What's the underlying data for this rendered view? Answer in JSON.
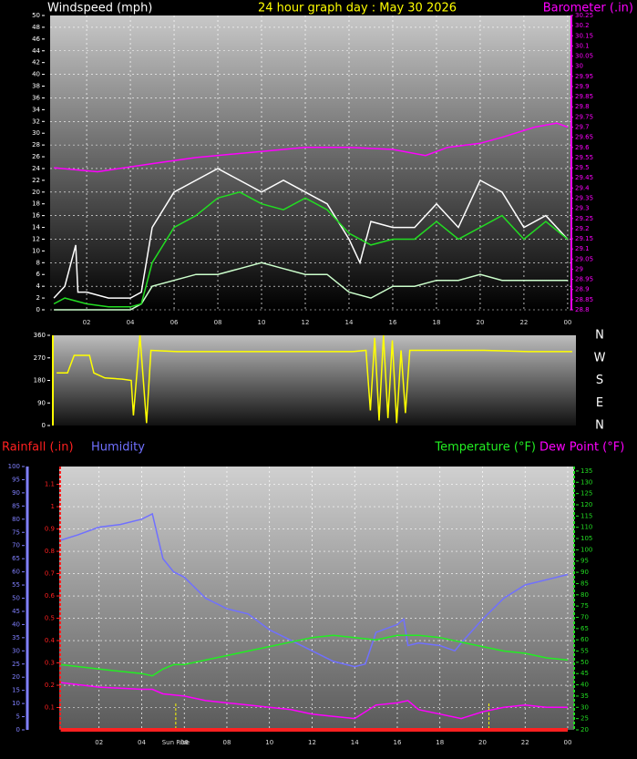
{
  "chart_data": [
    {
      "type": "line",
      "title": "24 hour graph day : May 30 2026",
      "ylabel": "Windspeed (mph)",
      "xlim": [
        0.33,
        24.17
      ],
      "xticks": [
        {
          "value": 2,
          "label": "02"
        },
        {
          "value": 4,
          "label": "04"
        },
        {
          "value": 6,
          "label": "06"
        },
        {
          "value": 8,
          "label": "08"
        },
        10,
        12,
        14,
        16,
        18,
        20,
        22,
        {
          "value": 24,
          "label": "00"
        }
      ],
      "ylim": [
        0,
        50
      ],
      "yticks": [
        0,
        2,
        4,
        6,
        8,
        10,
        12,
        14,
        16,
        18,
        20,
        22,
        24,
        26,
        28,
        30,
        32,
        34,
        36,
        38,
        40,
        42,
        44,
        46,
        48,
        50
      ],
      "y2lim": [
        28.8,
        30.25
      ],
      "y2ticks": [
        28.8,
        28.85,
        28.9,
        28.95,
        29,
        29.05,
        29.1,
        29.15,
        29.2,
        29.25,
        29.3,
        29.35,
        29.4,
        29.45,
        29.5,
        29.55,
        29.6,
        29.65,
        29.7,
        29.75,
        29.8,
        29.85,
        29.9,
        29.95,
        30,
        30.05,
        30.1,
        30.15,
        30.2,
        30.25
      ],
      "ycolor": "#ffffff",
      "y2color": "#ff00ff",
      "grid": true,
      "series": [
        {
          "color": "#ffffff",
          "x": [
            0.5,
            1,
            1.5,
            1.6,
            2,
            3,
            4,
            4.5,
            5,
            6,
            7,
            8,
            9,
            10,
            11,
            12,
            13,
            14,
            14.5,
            15,
            16,
            17,
            18,
            19,
            20,
            21,
            22,
            23,
            24
          ],
          "values": [
            2,
            4,
            11,
            3,
            3,
            2,
            2,
            3,
            14,
            20,
            22,
            24,
            22,
            20,
            22,
            20,
            18,
            12,
            8,
            15,
            14,
            14,
            18,
            14,
            22,
            20,
            14,
            16,
            12
          ]
        },
        {
          "color": "#ccffcc",
          "x": [
            0.5,
            4,
            4.5,
            5,
            6,
            7,
            8,
            9,
            10,
            11,
            12,
            13,
            14,
            15,
            16,
            17,
            18,
            19,
            20,
            21,
            22,
            23,
            24
          ],
          "values": [
            0,
            0,
            1,
            4,
            5,
            6,
            6,
            7,
            8,
            7,
            6,
            6,
            3,
            2,
            4,
            4,
            5,
            5,
            6,
            5,
            5,
            5,
            5
          ]
        },
        {
          "color": "#22dd22",
          "x": [
            0.5,
            1,
            2,
            3,
            4,
            4.5,
            5,
            6,
            7,
            8,
            9,
            10,
            11,
            12,
            13,
            14,
            15,
            16,
            17,
            18,
            19,
            20,
            21,
            22,
            23,
            24
          ],
          "values": [
            1,
            2,
            1,
            0.5,
            0.5,
            1,
            8,
            14,
            16,
            19,
            20,
            18,
            17,
            19,
            17,
            13,
            11,
            12,
            12,
            15,
            12,
            14,
            16,
            12,
            15,
            12
          ]
        },
        {
          "name": "Barometer (.in)",
          "color": "#ff00ff",
          "axis": "y2",
          "x": [
            0.5,
            2.5,
            5,
            7,
            10,
            12,
            14,
            16,
            17.5,
            18.5,
            20,
            21,
            22.5,
            23.5,
            24
          ],
          "values": [
            29.5,
            29.48,
            29.52,
            29.55,
            29.58,
            29.6,
            29.6,
            29.59,
            29.56,
            29.6,
            29.62,
            29.65,
            29.7,
            29.72,
            29.7
          ]
        }
      ]
    },
    {
      "type": "line",
      "xlim": [
        0.33,
        24.17
      ],
      "ylim": [
        0,
        360
      ],
      "yticks": [
        0,
        90,
        180,
        270,
        360
      ],
      "ycolor": "#ffffff",
      "compass": [
        "N",
        "W",
        "S",
        "E",
        "N"
      ],
      "series": [
        {
          "color": "#ffff00",
          "x": [
            0.5,
            1,
            1.3,
            2,
            2.2,
            2.7,
            3.5,
            3.9,
            4,
            4.3,
            4.6,
            4.8,
            6,
            8,
            10,
            12,
            14,
            14.6,
            14.8,
            15,
            15.2,
            15.4,
            15.6,
            15.8,
            16,
            16.2,
            16.4,
            16.6,
            18,
            20,
            22,
            24
          ],
          "values": [
            210,
            210,
            280,
            280,
            210,
            190,
            185,
            180,
            40,
            360,
            10,
            300,
            295,
            295,
            295,
            295,
            295,
            300,
            60,
            350,
            20,
            360,
            30,
            340,
            10,
            300,
            50,
            300,
            300,
            300,
            295,
            295
          ]
        }
      ]
    },
    {
      "type": "line",
      "xlim": [
        0.13,
        24.3
      ],
      "xticks": [
        {
          "value": 2,
          "label": "02"
        },
        {
          "value": 4,
          "label": "04"
        },
        {
          "value": 6,
          "label": "06"
        },
        {
          "value": 8,
          "label": "08"
        },
        10,
        12,
        14,
        16,
        18,
        20,
        22,
        {
          "value": 24,
          "label": "00"
        }
      ],
      "ylim": [
        0,
        100
      ],
      "yticks": [
        0,
        5,
        10,
        15,
        20,
        25,
        30,
        35,
        40,
        45,
        50,
        55,
        60,
        65,
        70,
        75,
        80,
        85,
        90,
        95,
        100
      ],
      "y2lim": [
        20,
        137
      ],
      "y2ticks": [
        20,
        25,
        30,
        35,
        40,
        45,
        50,
        55,
        60,
        65,
        70,
        75,
        80,
        85,
        90,
        95,
        100,
        105,
        110,
        115,
        120,
        125,
        130,
        135
      ],
      "y3lim": [
        0,
        1.18
      ],
      "y3ticks": [
        0.1,
        0.2,
        0.3,
        0.4,
        0.5,
        0.6,
        0.7,
        0.8,
        0.9,
        1,
        1.1
      ],
      "ycolor": "#8080ff",
      "y2color": "#22dd22",
      "y3color": "#ff2020",
      "grid": true,
      "annotations": [
        {
          "x": 5.6,
          "label": "Sun Rise"
        },
        {
          "x": 20.3
        }
      ],
      "series": [
        {
          "name": "Rainfall (.in)",
          "color": "#ff2020",
          "axis": "y3",
          "x": [
            0.2,
            24
          ],
          "values": [
            0,
            0
          ]
        },
        {
          "name": "Humidity",
          "color": "#7070ff",
          "x": [
            0.2,
            1,
            2,
            3,
            4,
            4.5,
            5,
            5.5,
            6,
            7,
            8,
            9,
            10,
            11,
            12,
            13,
            14,
            14.5,
            15,
            16,
            16.3,
            16.5,
            17,
            18,
            18.7,
            19,
            20,
            21,
            22,
            23,
            24
          ],
          "values": [
            72,
            74,
            77,
            78,
            80,
            82,
            65,
            60,
            58,
            50,
            46,
            44,
            38,
            34,
            30,
            26,
            24,
            25,
            37,
            40,
            42,
            32,
            33,
            32,
            30,
            33,
            42,
            50,
            55,
            57,
            59
          ]
        },
        {
          "name": "Temperature (°F)",
          "color": "#22ee22",
          "axis": "y2",
          "x": [
            0.2,
            2,
            4,
            4.5,
            5,
            5.5,
            6,
            7,
            8,
            9,
            10,
            11,
            12,
            13,
            14,
            15,
            16,
            17,
            18,
            19,
            20,
            21,
            22,
            23,
            24
          ],
          "values": [
            49,
            47,
            45,
            44,
            47,
            49,
            49,
            51,
            53,
            55,
            57,
            59,
            61,
            62,
            61,
            60,
            62,
            62,
            61,
            59,
            57,
            55,
            54,
            52,
            51
          ]
        },
        {
          "name": "Dew Point (°F)",
          "color": "#ff00ff",
          "axis": "y2",
          "x": [
            0.2,
            2,
            4,
            4.5,
            5,
            6,
            7,
            8,
            9,
            10,
            11,
            12,
            13,
            14,
            15,
            16,
            16.5,
            17,
            18,
            19,
            20,
            21,
            22,
            23,
            24
          ],
          "values": [
            41,
            39,
            38,
            38,
            36,
            35,
            33,
            32,
            31,
            30,
            29,
            27,
            26,
            25,
            31,
            32,
            33,
            29,
            27,
            25,
            28,
            30,
            31,
            30,
            30
          ]
        }
      ]
    }
  ]
}
